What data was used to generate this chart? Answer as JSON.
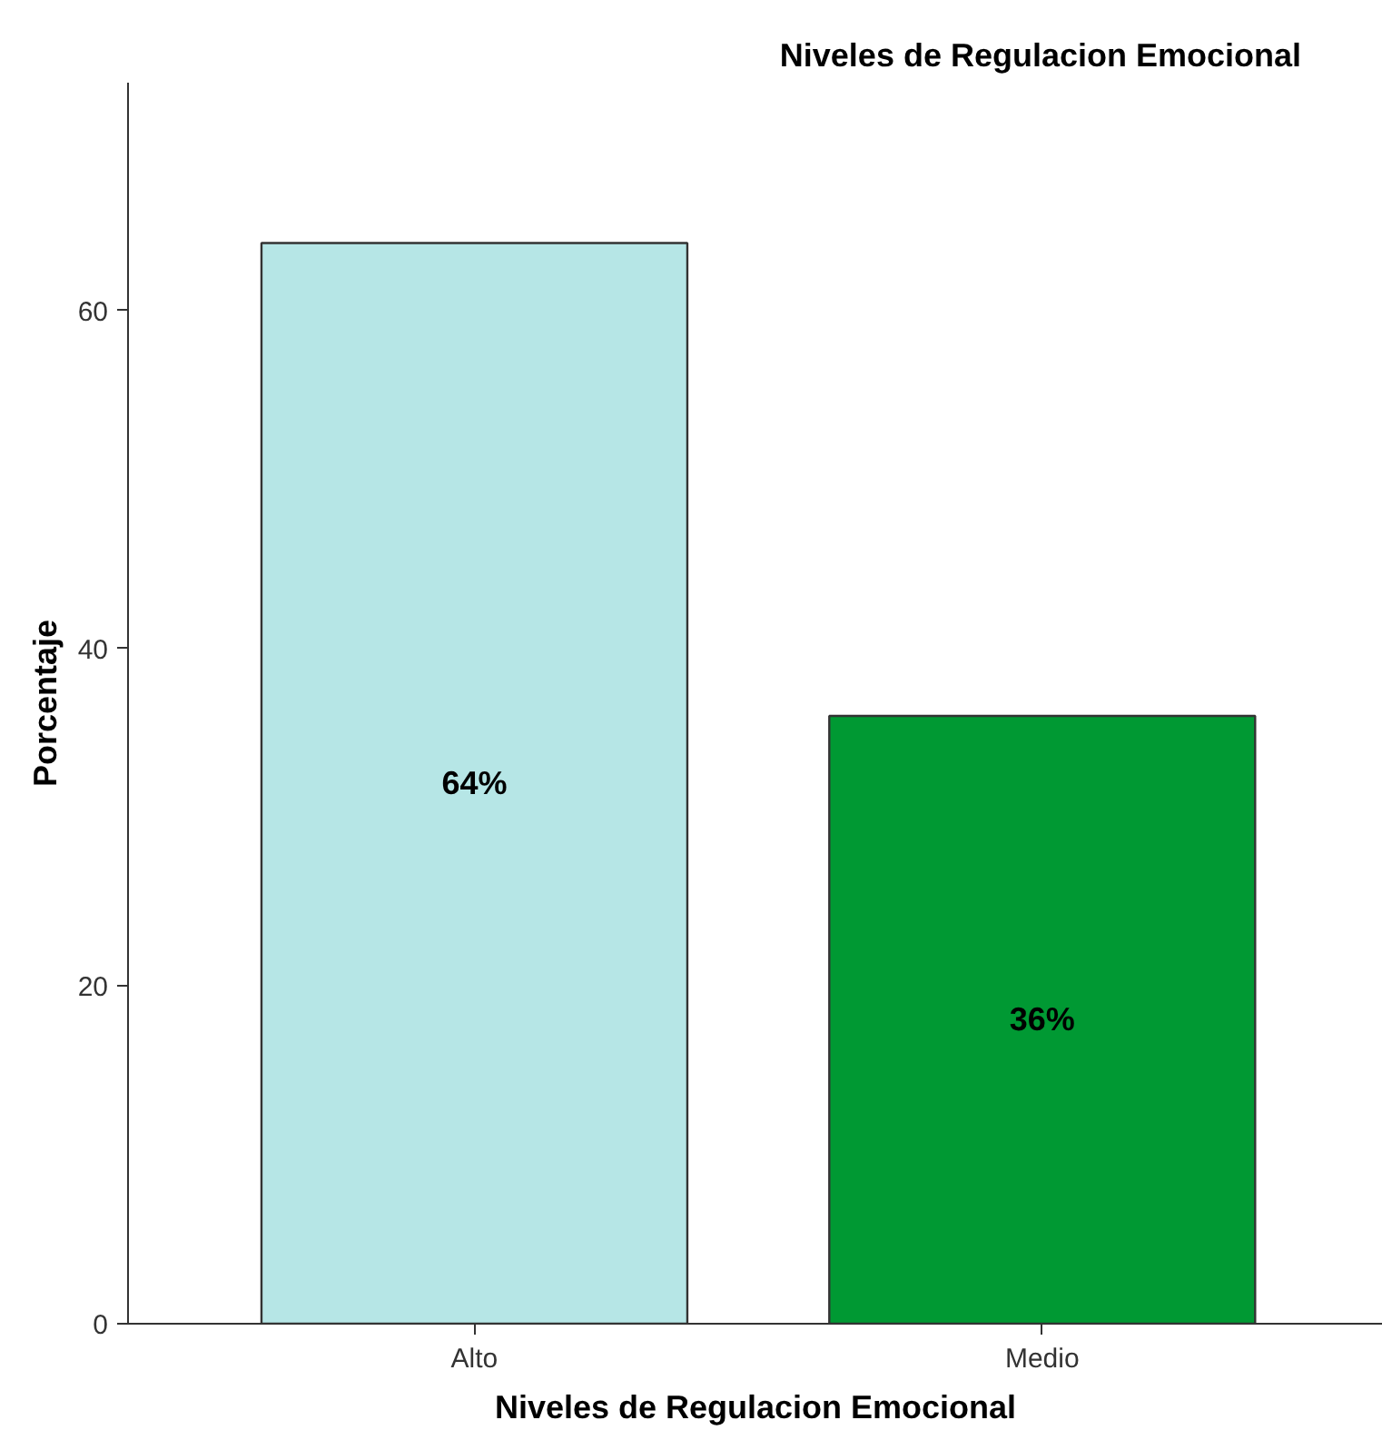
{
  "chart_data": {
    "type": "bar",
    "title": "Niveles de Regulacion Emocional",
    "xlabel": "Niveles de Regulacion Emocional",
    "ylabel": "Porcentaje",
    "categories": [
      "Alto",
      "Medio"
    ],
    "values": [
      64,
      36
    ],
    "colors": [
      "#b6e6e6",
      "#009933"
    ],
    "value_labels": [
      "64%",
      "36%"
    ],
    "ylim": [
      0,
      73.5
    ],
    "yticks": [
      0,
      20,
      40,
      60
    ],
    "grid": false
  }
}
